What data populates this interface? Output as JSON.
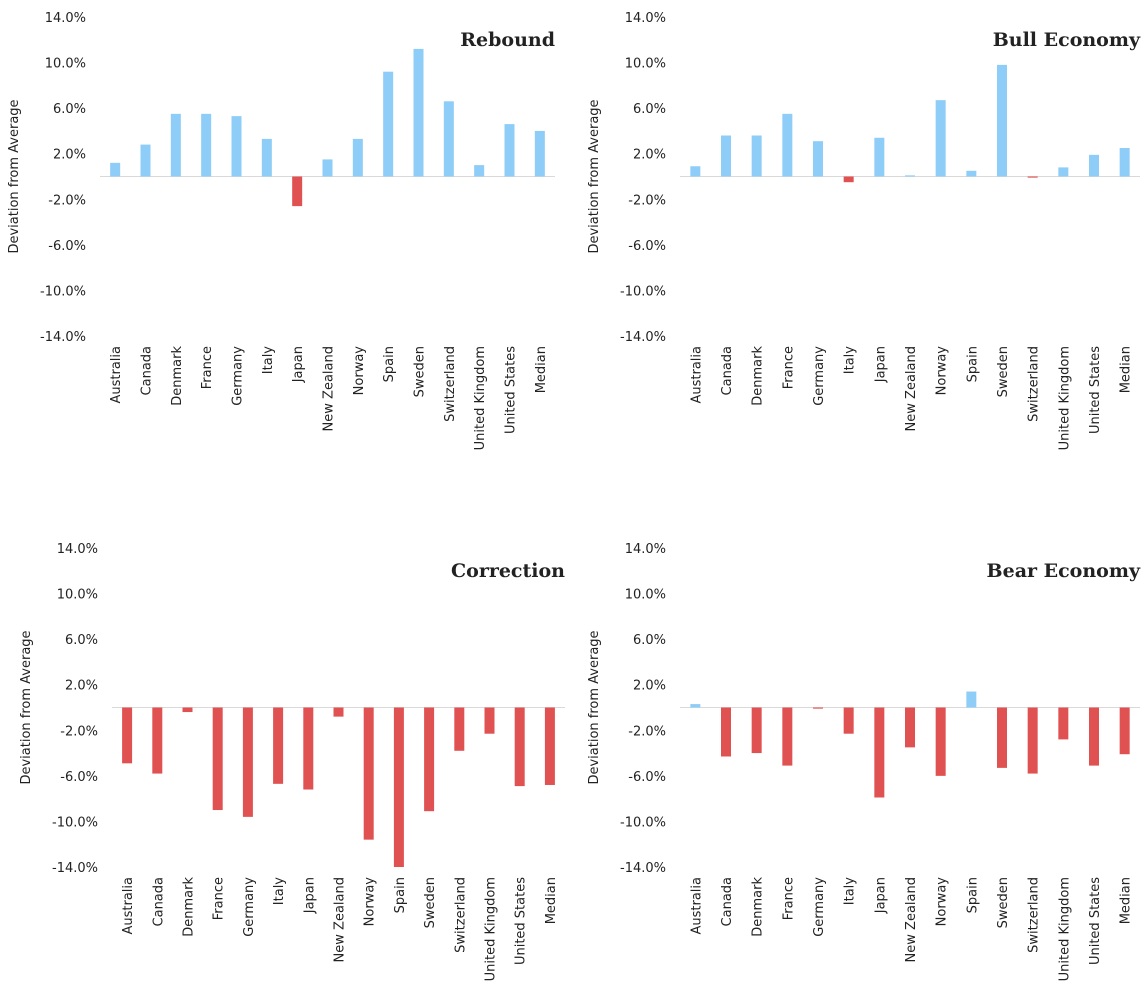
{
  "chart_data": [
    {
      "type": "bar",
      "title": "Rebound",
      "y_label": "Deviation from Average",
      "categories": [
        "Australia",
        "Canada",
        "Denmark",
        "France",
        "Germany",
        "Italy",
        "Japan",
        "New Zealand",
        "Norway",
        "Spain",
        "Sweden",
        "Switzerland",
        "United Kingdom",
        "United States",
        "Median"
      ],
      "values": [
        1.2,
        2.8,
        5.5,
        5.5,
        5.3,
        3.3,
        -2.6,
        1.5,
        3.3,
        9.2,
        11.2,
        6.6,
        1.0,
        4.6,
        4.0
      ],
      "positive_color": "#8ecdf7",
      "negative_color": "#e05252",
      "ylim": [
        -14,
        14
      ],
      "yticks": [
        {
          "value": -14,
          "label": "-14.0%"
        },
        {
          "value": -10,
          "label": "-10.0%"
        },
        {
          "value": -6,
          "label": "-6.0%"
        },
        {
          "value": -2,
          "label": "-2.0%"
        },
        {
          "value": 2,
          "label": "2.0%"
        },
        {
          "value": 6,
          "label": "6.0%"
        },
        {
          "value": 10,
          "label": "10.0%"
        },
        {
          "value": 14,
          "label": "14.0%"
        }
      ]
    },
    {
      "type": "bar",
      "title": "Bull Economy",
      "y_label": "Deviation from Average",
      "categories": [
        "Australia",
        "Canada",
        "Denmark",
        "France",
        "Germany",
        "Italy",
        "Japan",
        "New Zealand",
        "Norway",
        "Spain",
        "Sweden",
        "Switzerland",
        "United Kingdom",
        "United States",
        "Median"
      ],
      "values": [
        0.9,
        3.6,
        3.6,
        5.5,
        3.1,
        -0.5,
        3.4,
        0.1,
        6.7,
        0.5,
        9.8,
        -0.1,
        0.8,
        1.9,
        2.5
      ],
      "positive_color": "#8ecdf7",
      "negative_color": "#e05252",
      "ylim": [
        -14,
        14
      ],
      "yticks": [
        {
          "value": -14,
          "label": "-14.0%"
        },
        {
          "value": -10,
          "label": "-10.0%"
        },
        {
          "value": -6,
          "label": "-6.0%"
        },
        {
          "value": -2,
          "label": "-2.0%"
        },
        {
          "value": 2,
          "label": "2.0%"
        },
        {
          "value": 6,
          "label": "6.0%"
        },
        {
          "value": 10,
          "label": "10.0%"
        },
        {
          "value": 14,
          "label": "14.0%"
        }
      ]
    },
    {
      "type": "bar",
      "title": "Correction",
      "y_label": "Deviation from Average",
      "categories": [
        "Australia",
        "Canada",
        "Denmark",
        "France",
        "Germany",
        "Italy",
        "Japan",
        "New Zealand",
        "Norway",
        "Spain",
        "Sweden",
        "Switzerland",
        "United Kingdom",
        "United States",
        "Median"
      ],
      "values": [
        -4.9,
        -5.8,
        -0.4,
        -9.0,
        -9.6,
        -6.7,
        -7.2,
        -0.8,
        -11.6,
        -14.0,
        -9.1,
        -3.8,
        -2.3,
        -6.9,
        -6.8
      ],
      "positive_color": "#8ecdf7",
      "negative_color": "#e05252",
      "ylim": [
        -14,
        14
      ],
      "yticks": [
        {
          "value": -14,
          "label": "-14.0%"
        },
        {
          "value": -10,
          "label": "-10.0%"
        },
        {
          "value": -6,
          "label": "-6.0%"
        },
        {
          "value": -2,
          "label": "-2.0%"
        },
        {
          "value": 2,
          "label": "2.0%"
        },
        {
          "value": 6,
          "label": "6.0%"
        },
        {
          "value": 10,
          "label": "10.0%"
        },
        {
          "value": 14,
          "label": "14.0%"
        }
      ]
    },
    {
      "type": "bar",
      "title": "Bear Economy",
      "y_label": "Deviation from Average",
      "categories": [
        "Australia",
        "Canada",
        "Denmark",
        "France",
        "Germany",
        "Italy",
        "Japan",
        "New Zealand",
        "Norway",
        "Spain",
        "Sweden",
        "Switzerland",
        "United Kingdom",
        "United States",
        "Median"
      ],
      "values": [
        0.3,
        -4.3,
        -4.0,
        -5.1,
        -0.1,
        -2.3,
        -7.9,
        -3.5,
        -6.0,
        1.4,
        -5.3,
        -5.8,
        -2.8,
        -5.1,
        -4.1
      ],
      "positive_color": "#8ecdf7",
      "negative_color": "#e05252",
      "ylim": [
        -14,
        14
      ],
      "yticks": [
        {
          "value": -14,
          "label": "-14.0%"
        },
        {
          "value": -10,
          "label": "-10.0%"
        },
        {
          "value": -6,
          "label": "-6.0%"
        },
        {
          "value": -2,
          "label": "-2.0%"
        },
        {
          "value": 2,
          "label": "2.0%"
        },
        {
          "value": 6,
          "label": "6.0%"
        },
        {
          "value": 10,
          "label": "10.0%"
        },
        {
          "value": 14,
          "label": "14.0%"
        }
      ]
    }
  ]
}
